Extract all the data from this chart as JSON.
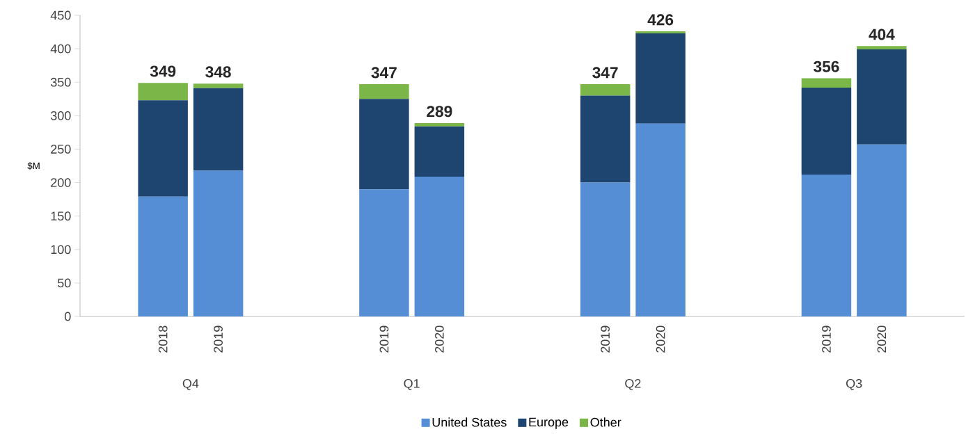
{
  "chart_data": {
    "type": "bar",
    "stacked": true,
    "ylabel": "$M",
    "categories": [
      "2018",
      "2019",
      null,
      null,
      "2019",
      "2020",
      null,
      null,
      "2019",
      "2020",
      null,
      null,
      "2019",
      "2020"
    ],
    "series": [
      {
        "name": "United States",
        "color": "#558ed5",
        "values": [
          179,
          218,
          null,
          null,
          190,
          209,
          null,
          null,
          200,
          288,
          null,
          null,
          212,
          257
        ]
      },
      {
        "name": "Europe",
        "color": "#1d4570",
        "values": [
          144,
          123,
          null,
          null,
          135,
          75,
          null,
          null,
          130,
          135,
          null,
          null,
          130,
          142
        ]
      },
      {
        "name": "Other",
        "color": "#7ab648",
        "values": [
          26,
          7,
          null,
          null,
          22,
          5,
          null,
          null,
          17,
          3,
          null,
          null,
          14,
          5
        ]
      }
    ],
    "totals": [
      "349",
      "348",
      null,
      null,
      "347",
      "289",
      null,
      null,
      "347",
      "426",
      null,
      null,
      "356",
      "404"
    ],
    "annotations": [
      "Q4",
      "Q1",
      "Q2",
      "Q3"
    ],
    "ylim": [
      0,
      450
    ],
    "yticks": [
      0,
      50,
      100,
      150,
      200,
      250,
      300,
      350,
      400,
      450
    ],
    "grid": false,
    "legend": "bottom"
  }
}
